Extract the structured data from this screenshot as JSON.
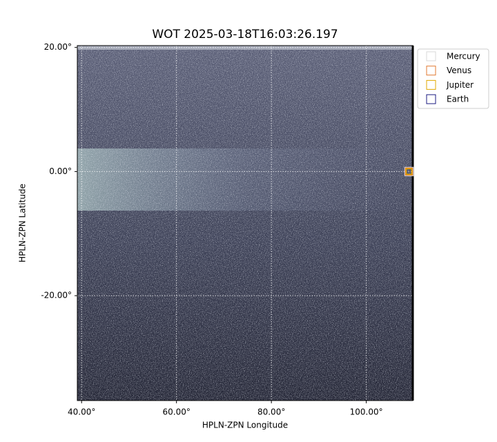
{
  "chart_data": {
    "type": "image",
    "title": "WOT 2025-03-18T16:03:26.197",
    "x_label": "HPLN-ZPN Longitude",
    "y_label": "HPLN-ZPN Latitude",
    "xlim": [
      39.1,
      109.8
    ],
    "ylim": [
      -36.9,
      20.3
    ],
    "xticks": [
      {
        "value": 40,
        "label": "40.00°"
      },
      {
        "value": 60,
        "label": "60.00°"
      },
      {
        "value": 80,
        "label": "80.00°"
      },
      {
        "value": 100,
        "label": "100.00°"
      }
    ],
    "yticks": [
      {
        "value": 20,
        "label": "20.00°"
      },
      {
        "value": 0,
        "label": "0.00°"
      },
      {
        "value": -20,
        "label": "-20.00°"
      }
    ],
    "grid": true,
    "legend": "outside upper right",
    "series": [
      {
        "name": "Mercury",
        "color": "#d8d8d8",
        "x": [
          109
        ],
        "values": [
          0
        ]
      },
      {
        "name": "Venus",
        "color": "#e07a30",
        "x": [
          109
        ],
        "values": [
          0
        ]
      },
      {
        "name": "Jupiter",
        "color": "#e0a800",
        "x": [
          109
        ],
        "values": [
          0
        ]
      },
      {
        "name": "Earth",
        "color": "#1a1a80",
        "x": [],
        "values": []
      }
    ]
  }
}
